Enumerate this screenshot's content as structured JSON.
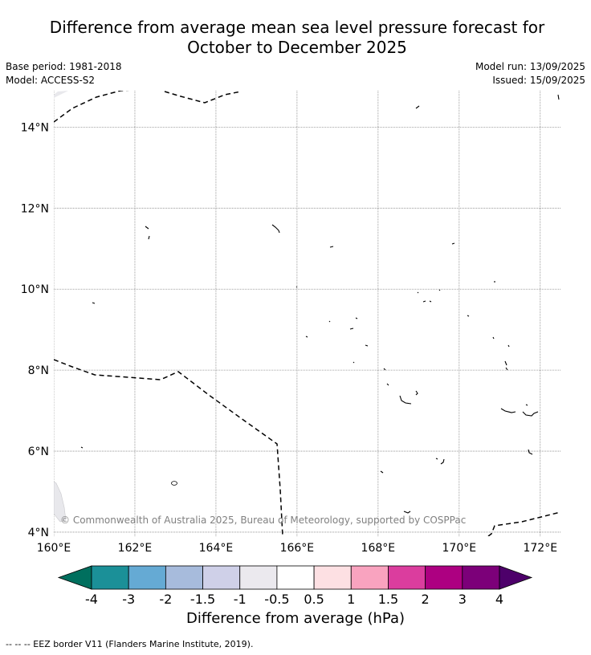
{
  "title_line1": "Difference from average mean sea level pressure forecast for",
  "title_line2": "October to December 2025",
  "meta": {
    "base_period": "Base period: 1981-2018",
    "model": "Model: ACCESS-S2",
    "model_run": "Model run: 13/09/2025",
    "issued": "Issued: 15/09/2025"
  },
  "map": {
    "lon_range": [
      160,
      172.5
    ],
    "lat_range": [
      3.9,
      14.9
    ],
    "lon_ticks": [
      "160°E",
      "162°E",
      "164°E",
      "166°E",
      "168°E",
      "170°E",
      "172°E"
    ],
    "lat_ticks": [
      "4°N",
      "6°N",
      "8°N",
      "10°N",
      "12°N",
      "14°N"
    ],
    "gridlines": true,
    "field_color": "#ffffff",
    "copyright": "© Commonwealth of Australia 2025, Bureau of Meteorology, supported by COSPPac"
  },
  "colorbar": {
    "title": "Difference from average (hPa)",
    "tick_labels": [
      "-4",
      "-3",
      "-2",
      "-1.5",
      "-1",
      "-0.5",
      "0.5",
      "1",
      "1.5",
      "2",
      "3",
      "4"
    ],
    "colors": [
      "#006f5e",
      "#1b9098",
      "#65aad4",
      "#a7bbdc",
      "#cfd0e8",
      "#ebe9ee",
      "#ffffff",
      "#fde0e3",
      "#f9a3bf",
      "#db3d9e",
      "#ad0081",
      "#7c0079",
      "#4d006a"
    ]
  },
  "legend_footer": "--  --  -- EEZ border V11 (Flanders Marine Institute, 2019)."
}
